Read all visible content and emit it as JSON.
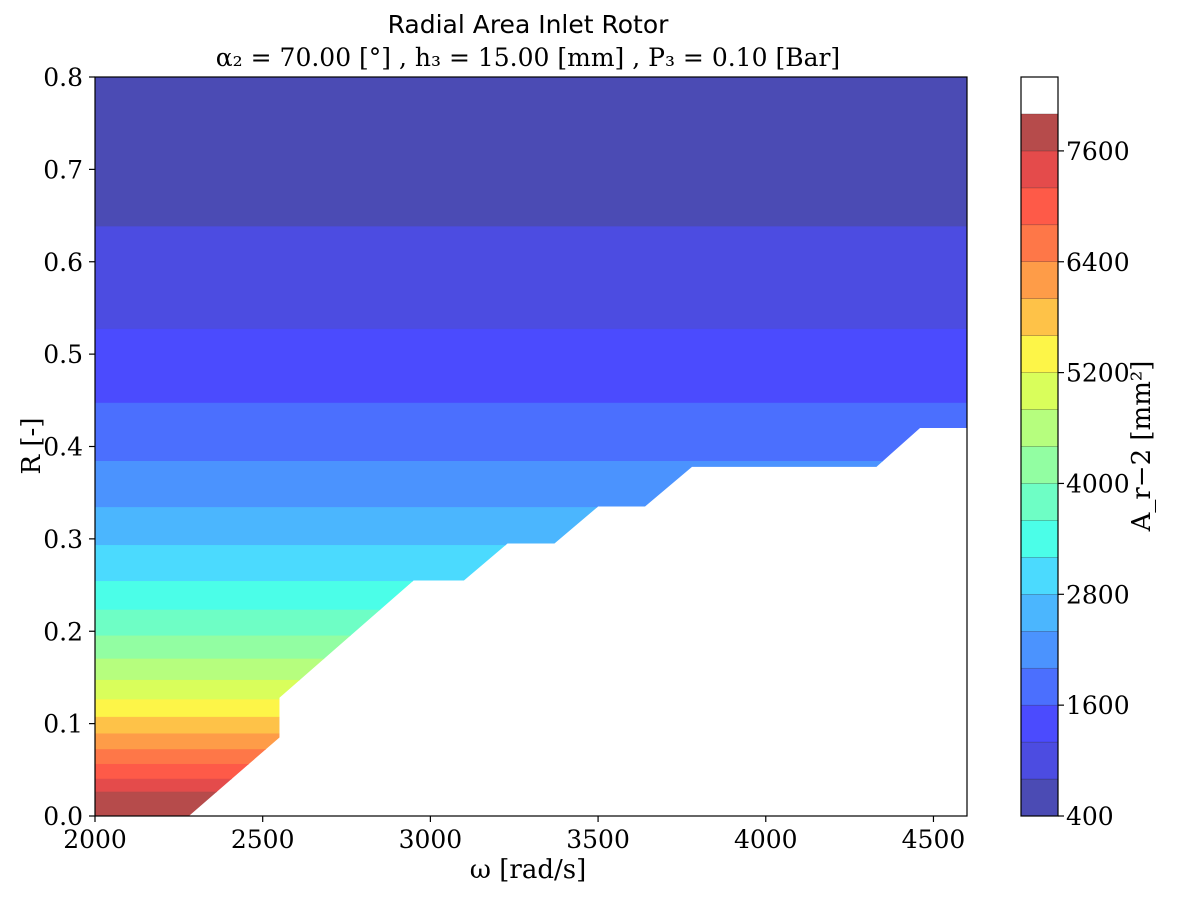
{
  "chart_data": {
    "type": "contour",
    "title": "Radial Area Inlet Rotor",
    "subtitle": "α₂ = 70.00 [°] , h₃ = 15.00 [mm] , P₃ = 0.10 [Bar]",
    "xlabel": "ω [rad/s]",
    "ylabel": "R [-]",
    "colorbar_label": "A_r−2 [mm²]",
    "xlim": [
      2000,
      4600
    ],
    "ylim": [
      0.0,
      0.8
    ],
    "xticks": [
      "2000",
      "2500",
      "3000",
      "3500",
      "4000",
      "4500"
    ],
    "yticks": [
      "0.0",
      "0.1",
      "0.2",
      "0.3",
      "0.4",
      "0.5",
      "0.6",
      "0.7",
      "0.8"
    ],
    "colorbar_ticks": [
      "400",
      "1600",
      "2800",
      "4000",
      "5200",
      "6400",
      "7600"
    ],
    "colorbar_levels": [
      400,
      800,
      1200,
      1600,
      2000,
      2400,
      2800,
      3200,
      3600,
      4000,
      4400,
      4800,
      5200,
      5600,
      6000,
      6400,
      6800,
      7200,
      7600,
      8000,
      8400
    ],
    "level_colors": [
      "#4b4bb4",
      "#4c4ce1",
      "#4b4bfe",
      "#4b6ffe",
      "#4b93fe",
      "#4bb6fe",
      "#4bdafe",
      "#4bfee8",
      "#6efec5",
      "#92fea2",
      "#b6fe7e",
      "#d9fe5b",
      "#fdf548",
      "#fec248",
      "#fe9c48",
      "#fe7748",
      "#fe5a48",
      "#e44b4b",
      "#b64b4b"
    ],
    "bands_R": [
      [
        0.638,
        0.8
      ],
      [
        0.527,
        0.638
      ],
      [
        0.447,
        0.527
      ],
      [
        0.384,
        0.447
      ],
      [
        0.334,
        0.384
      ],
      [
        0.293,
        0.334
      ],
      [
        0.254,
        0.293
      ],
      [
        0.223,
        0.254
      ],
      [
        0.195,
        0.223
      ],
      [
        0.17,
        0.195
      ],
      [
        0.147,
        0.17
      ],
      [
        0.126,
        0.147
      ],
      [
        0.107,
        0.126
      ],
      [
        0.089,
        0.107
      ],
      [
        0.072,
        0.089
      ],
      [
        0.056,
        0.072
      ],
      [
        0.04,
        0.056
      ],
      [
        0.026,
        0.04
      ],
      [
        0.0,
        0.026
      ]
    ],
    "valid_region_boundary": [
      [
        4600,
        0.42
      ],
      [
        4460,
        0.42
      ],
      [
        4330,
        0.378
      ],
      [
        3780,
        0.378
      ],
      [
        3640,
        0.335
      ],
      [
        3500,
        0.335
      ],
      [
        3370,
        0.295
      ],
      [
        3230,
        0.295
      ],
      [
        3100,
        0.255
      ],
      [
        2950,
        0.255
      ],
      [
        2550,
        0.128
      ],
      [
        2550,
        0.085
      ],
      [
        2280,
        0.0
      ],
      [
        2000,
        0.0
      ]
    ]
  }
}
